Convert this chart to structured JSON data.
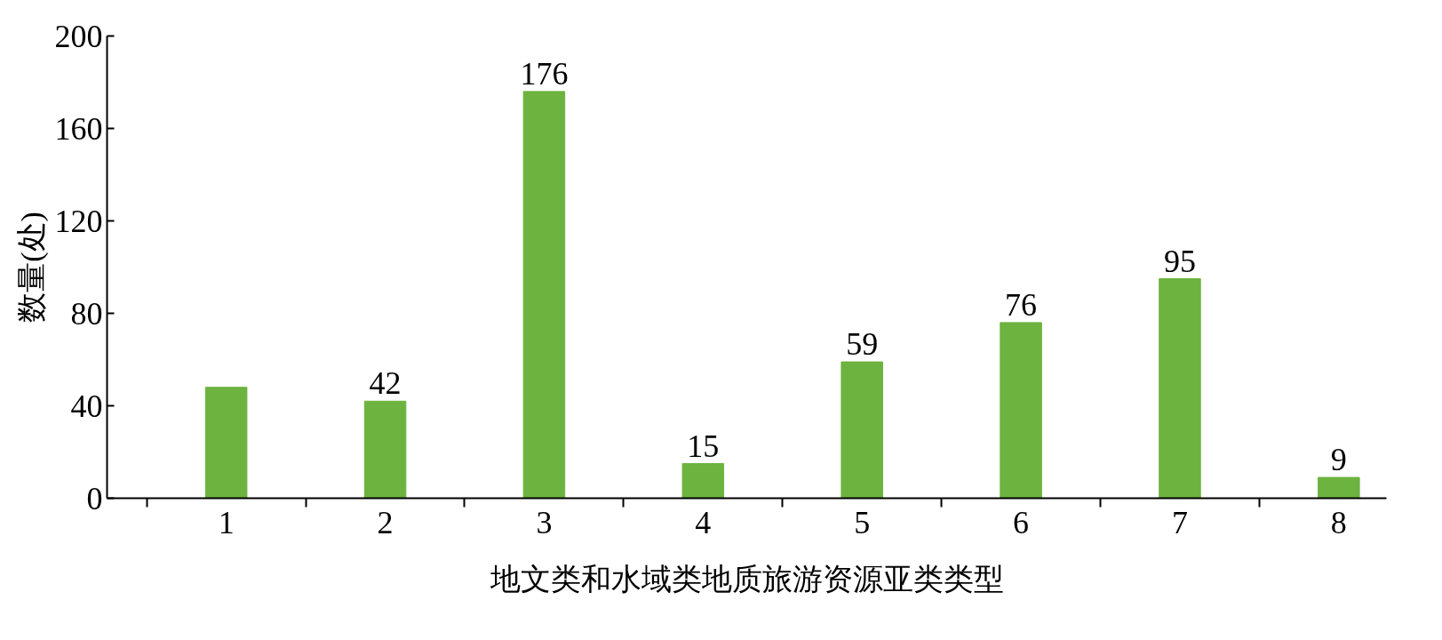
{
  "chart_data": {
    "type": "bar",
    "xlabel": "地文类和水域类地质旅游资源亚类类型",
    "ylabel": "数量(处)",
    "categories": [
      "1",
      "2",
      "3",
      "4",
      "5",
      "6",
      "7",
      "8"
    ],
    "values": [
      48,
      42,
      176,
      15,
      59,
      76,
      95,
      9
    ],
    "value_labels": [
      null,
      "42",
      "176",
      "15",
      "59",
      "76",
      "95",
      "9"
    ],
    "color": "#6db33f",
    "ylim": [
      0,
      200
    ],
    "yticks": [
      0,
      40,
      80,
      120,
      160,
      200
    ],
    "grid": false
  }
}
